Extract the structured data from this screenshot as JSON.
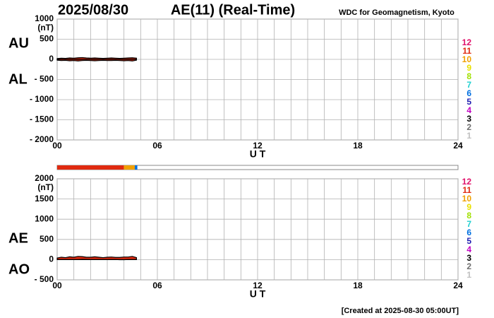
{
  "title_date": "2025/08/30",
  "title": "AE(11) (Real-Time)",
  "source": "WDC for Geomagnetism, Kyoto",
  "footer": "[Created at 2025-08-30 05:00UT]",
  "legend": [
    {
      "label": "12",
      "color": "#e0106a"
    },
    {
      "label": "11",
      "color": "#e02a10"
    },
    {
      "label": "10",
      "color": "#f0a000"
    },
    {
      "label": "9",
      "color": "#e8e000"
    },
    {
      "label": "8",
      "color": "#a0e000"
    },
    {
      "label": "7",
      "color": "#20d0d0"
    },
    {
      "label": "6",
      "color": "#0070e0"
    },
    {
      "label": "5",
      "color": "#2020b0"
    },
    {
      "label": "4",
      "color": "#c000c0"
    },
    {
      "label": "3",
      "color": "#000000"
    },
    {
      "label": "2",
      "color": "#707070"
    },
    {
      "label": "1",
      "color": "#c0c0c0"
    }
  ],
  "station_bar": [
    {
      "start": 0,
      "end": 4,
      "stations": 11,
      "color": "#e02a10"
    },
    {
      "start": 4,
      "end": 4.65,
      "stations": 10,
      "color": "#f0a000"
    },
    {
      "start": 4.65,
      "end": 4.8,
      "stations": 6,
      "color": "#0070e0"
    }
  ],
  "chart_data": [
    {
      "type": "area",
      "ylabel": "(nT)",
      "xlabel": "U T",
      "xlim": [
        0,
        24
      ],
      "xticks": [
        {
          "value": 0,
          "label": "00"
        },
        {
          "value": 6,
          "label": "06"
        },
        12,
        18,
        24
      ],
      "ylim": [
        -2000,
        1000
      ],
      "yticks": [
        1000,
        500,
        0,
        {
          "value": -500,
          "label": "- 500"
        },
        {
          "value": -1000,
          "label": "- 1000"
        },
        {
          "value": -1500,
          "label": "- 1500"
        },
        {
          "value": -2000,
          "label": "- 2000"
        }
      ],
      "grid": true,
      "x": [
        0,
        0.25,
        0.5,
        0.75,
        1,
        1.25,
        1.5,
        1.75,
        2,
        2.25,
        2.5,
        2.75,
        3,
        3.25,
        3.5,
        3.75,
        4,
        4.25,
        4.5,
        4.75
      ],
      "series": [
        {
          "name": "AU",
          "color": "#e02a10",
          "fill": true,
          "values": [
            20,
            30,
            25,
            35,
            30,
            40,
            45,
            35,
            30,
            35,
            30,
            25,
            30,
            35,
            30,
            25,
            30,
            35,
            40,
            30
          ]
        },
        {
          "name": "AL",
          "color": "#e02a10",
          "fill": true,
          "values": [
            -20,
            -30,
            -25,
            -35,
            -30,
            -40,
            -30,
            -25,
            -30,
            -35,
            -30,
            -25,
            -30,
            -30,
            -25,
            -30,
            -35,
            -30,
            -40,
            -20
          ]
        }
      ]
    },
    {
      "type": "area",
      "ylabel": "(nT)",
      "xlabel": "U T",
      "xlim": [
        0,
        24
      ],
      "xticks": [
        {
          "value": 0,
          "label": "00"
        },
        {
          "value": 6,
          "label": "06"
        },
        12,
        18,
        24
      ],
      "ylim": [
        -500,
        2000
      ],
      "yticks": [
        2000,
        1500,
        1000,
        500,
        0,
        {
          "value": -500,
          "label": "- 500"
        }
      ],
      "grid": true,
      "x": [
        0,
        0.25,
        0.5,
        0.75,
        1,
        1.25,
        1.5,
        1.75,
        2,
        2.25,
        2.5,
        2.75,
        3,
        3.25,
        3.5,
        3.75,
        4,
        4.25,
        4.5,
        4.75
      ],
      "series": [
        {
          "name": "AE",
          "color": "#e02a10",
          "fill": true,
          "values": [
            40,
            60,
            50,
            70,
            60,
            80,
            75,
            60,
            60,
            70,
            60,
            50,
            60,
            65,
            55,
            55,
            65,
            65,
            80,
            50
          ]
        },
        {
          "name": "AO",
          "color": "#000000",
          "fill": false,
          "values": [
            0,
            0,
            0,
            0,
            0,
            0,
            7.5,
            5,
            0,
            0,
            0,
            0,
            0,
            2.5,
            2.5,
            -2.5,
            -2.5,
            2.5,
            0,
            5
          ]
        }
      ]
    }
  ]
}
